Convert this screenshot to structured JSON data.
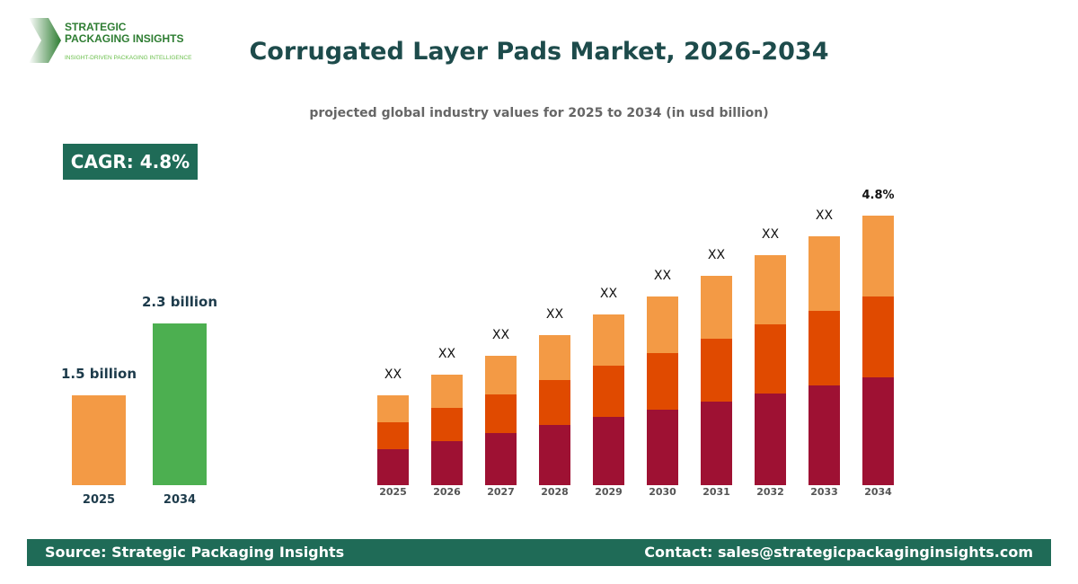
{
  "header": {
    "title": "Corrugated Layer Pads Market, 2026-2034",
    "subtitle": "projected global industry values for 2025 to 2034 (in usd billion)"
  },
  "logo": {
    "line1": "STRATEGIC",
    "line2": "PACKAGING INSIGHTS",
    "tagline": "INSIGHT-DRIVEN PACKAGING INTELLIGENCE"
  },
  "cagr_badge": "CAGR: 4.8%",
  "footer": {
    "source": "Source: Strategic Packaging Insights",
    "contact": "Contact: sales@strategicpackaginginsights.com"
  },
  "chart_data": [
    {
      "type": "bar",
      "categories": [
        "2025",
        "2034"
      ],
      "values": [
        1.5,
        2.3
      ],
      "data_labels": [
        "1.5 billion",
        "2.3 billion"
      ],
      "colors": [
        "#f39a45",
        "#4caf50"
      ],
      "ylim": [
        0.5,
        2.5
      ]
    },
    {
      "type": "bar",
      "stacked": true,
      "categories": [
        "2025",
        "2026",
        "2027",
        "2028",
        "2029",
        "2030",
        "2031",
        "2032",
        "2033",
        "2034"
      ],
      "series": [
        {
          "color": "#9e1133",
          "values": [
            40,
            49,
            58,
            67,
            76,
            84,
            93,
            102,
            111,
            120
          ]
        },
        {
          "color": "#e04a00",
          "values": [
            30,
            37,
            43,
            50,
            57,
            63,
            70,
            77,
            83,
            90
          ]
        },
        {
          "color": "#f39a45",
          "values": [
            30,
            37,
            43,
            50,
            57,
            63,
            70,
            77,
            83,
            90
          ]
        }
      ],
      "data_labels": [
        "XX",
        "XX",
        "XX",
        "XX",
        "XX",
        "XX",
        "XX",
        "XX",
        "XX",
        "4.8%"
      ],
      "axes_shown": false
    }
  ]
}
